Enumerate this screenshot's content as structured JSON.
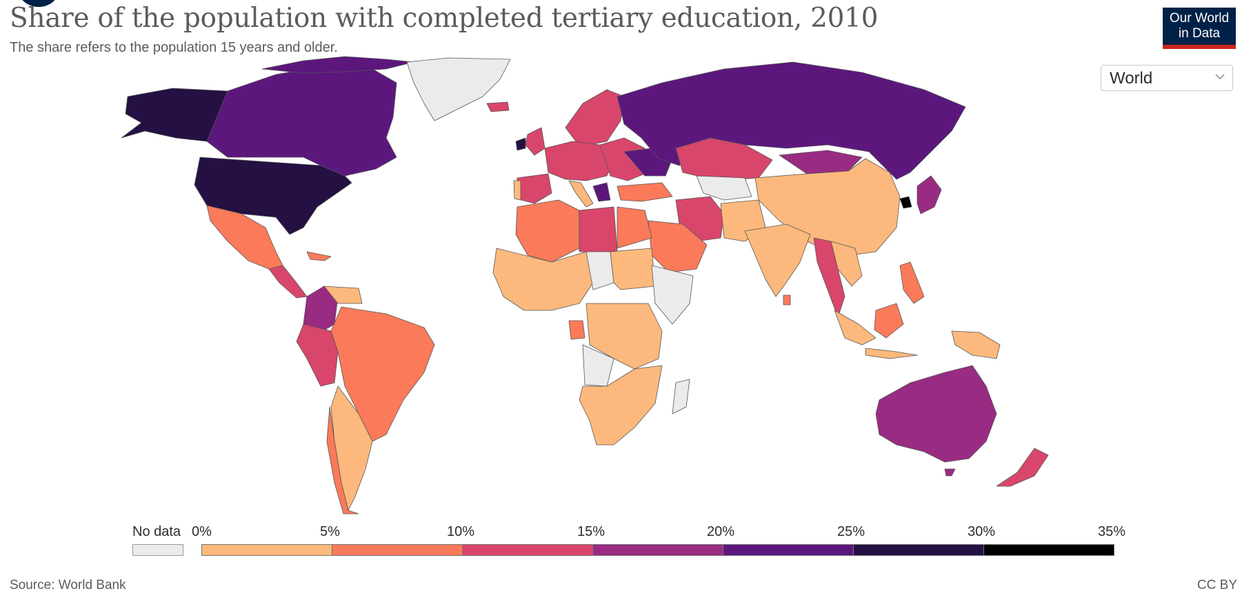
{
  "header": {
    "title": "Share of the population with completed tertiary education, 2010",
    "subtitle": "The share refers to the population 15 years and older."
  },
  "logo": {
    "line1": "Our World",
    "line2": "in Data",
    "bg_color": "#002147",
    "bar_color": "#ce261e"
  },
  "region_selector": {
    "value": "World"
  },
  "legend": {
    "no_data_label": "No data",
    "no_data_color": "#ebebeb",
    "ticks": [
      "0%",
      "5%",
      "10%",
      "15%",
      "20%",
      "25%",
      "30%",
      "35%"
    ],
    "colors": [
      "#fdb97d",
      "#fb7a5a",
      "#d9466b",
      "#9a2b83",
      "#5c177d",
      "#241043",
      "#000000"
    ]
  },
  "footer": {
    "source": "Source: World Bank",
    "license": "CC BY"
  }
}
